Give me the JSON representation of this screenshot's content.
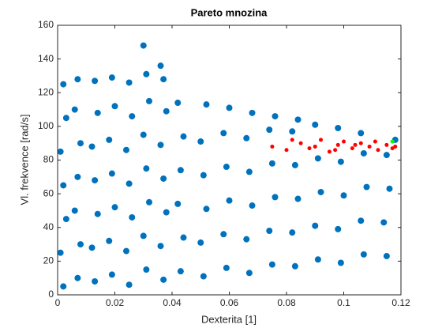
{
  "chart_data": {
    "type": "scatter",
    "title": "Pareto mnozina",
    "x_label": "Dexterita [1]",
    "y_label": "Vl. frekvence [rad/s]",
    "xlim": [
      0,
      0.12
    ],
    "ylim": [
      0,
      160
    ],
    "xticks": [
      0,
      0.02,
      0.04,
      0.06,
      0.08,
      0.1,
      0.12
    ],
    "yticks": [
      0,
      20,
      40,
      60,
      80,
      100,
      120,
      140,
      160
    ],
    "grid": false,
    "series": [
      {
        "color": "#0072bd",
        "x": [
          0.002,
          0.001,
          0.003,
          0.002,
          0.001,
          0.003,
          0.002,
          0.007,
          0.008,
          0.006,
          0.007,
          0.008,
          0.006,
          0.007,
          0.013,
          0.012,
          0.014,
          0.013,
          0.012,
          0.014,
          0.013,
          0.019,
          0.018,
          0.02,
          0.019,
          0.018,
          0.02,
          0.019,
          0.025,
          0.024,
          0.026,
          0.025,
          0.024,
          0.026,
          0.025,
          0.031,
          0.03,
          0.032,
          0.031,
          0.03,
          0.032,
          0.031,
          0.03,
          0.037,
          0.036,
          0.038,
          0.037,
          0.036,
          0.038,
          0.037,
          0.036,
          0.043,
          0.044,
          0.042,
          0.043,
          0.044,
          0.042,
          0.051,
          0.05,
          0.052,
          0.051,
          0.05,
          0.052,
          0.059,
          0.058,
          0.06,
          0.059,
          0.058,
          0.06,
          0.067,
          0.066,
          0.068,
          0.067,
          0.066,
          0.068,
          0.075,
          0.074,
          0.076,
          0.075,
          0.074,
          0.076,
          0.083,
          0.082,
          0.084,
          0.083,
          0.082,
          0.084,
          0.091,
          0.09,
          0.092,
          0.091,
          0.09,
          0.099,
          0.098,
          0.1,
          0.099,
          0.098,
          0.107,
          0.106,
          0.108,
          0.107,
          0.106,
          0.115,
          0.114,
          0.116,
          0.115,
          0.118
        ],
        "values": [
          5,
          25,
          45,
          65,
          85,
          105,
          125,
          10,
          30,
          50,
          70,
          90,
          110,
          128,
          8,
          28,
          48,
          68,
          88,
          108,
          127,
          12,
          32,
          52,
          72,
          92,
          112,
          129,
          6,
          26,
          46,
          66,
          86,
          106,
          126,
          15,
          35,
          55,
          75,
          95,
          115,
          131,
          148,
          9,
          29,
          49,
          69,
          89,
          109,
          128,
          136,
          14,
          34,
          54,
          74,
          94,
          114,
          11,
          31,
          51,
          71,
          91,
          113,
          16,
          36,
          56,
          76,
          96,
          111,
          13,
          33,
          53,
          73,
          93,
          108,
          18,
          38,
          58,
          78,
          98,
          106,
          17,
          37,
          57,
          77,
          97,
          104,
          21,
          41,
          61,
          81,
          101,
          19,
          39,
          59,
          79,
          99,
          24,
          44,
          64,
          84,
          96,
          23,
          43,
          63,
          83,
          92
        ]
      },
      {
        "color": "#ff0000",
        "x": [
          0.075,
          0.08,
          0.085,
          0.088,
          0.092,
          0.095,
          0.098,
          0.1,
          0.103,
          0.106,
          0.109,
          0.112,
          0.115,
          0.117,
          0.082,
          0.09,
          0.097,
          0.104,
          0.111,
          0.118
        ],
        "values": [
          88,
          86,
          90,
          87,
          92,
          85,
          89,
          91,
          87,
          90,
          88,
          86,
          89,
          87,
          92,
          88,
          86,
          89,
          91,
          88
        ]
      },
      {
        "color": "#00ff00",
        "x": [
          0.117
        ],
        "values": [
          91
        ]
      }
    ]
  }
}
